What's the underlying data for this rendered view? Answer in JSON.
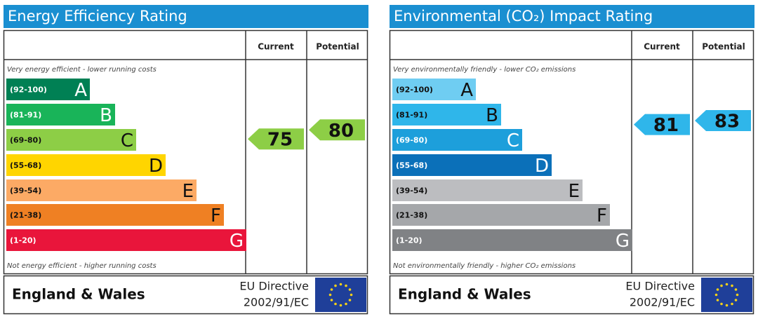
{
  "panels": [
    {
      "title": "Energy Efficiency Rating",
      "col_headers": [
        "Current",
        "Potential"
      ],
      "top_note": "Very energy efficient - lower running costs",
      "bottom_note": "Not energy efficient - higher running costs",
      "bands": [
        {
          "range": "(92-100)",
          "letter": "A",
          "color": "#008054"
        },
        {
          "range": "(81-91)",
          "letter": "B",
          "color": "#19b459"
        },
        {
          "range": "(69-80)",
          "letter": "C",
          "color": "#8dce46"
        },
        {
          "range": "(55-68)",
          "letter": "D",
          "color": "#ffd500"
        },
        {
          "range": "(39-54)",
          "letter": "E",
          "color": "#fcaa65"
        },
        {
          "range": "(21-38)",
          "letter": "F",
          "color": "#ef8023"
        },
        {
          "range": "(1-20)",
          "letter": "G",
          "color": "#e9153b"
        }
      ],
      "current": 75,
      "potential": 80,
      "footer": {
        "region": "England & Wales",
        "directive": "EU Directive",
        "directive_code": "2002/91/EC"
      }
    },
    {
      "title": "Environmental (CO₂) Impact Rating",
      "col_headers": [
        "Current",
        "Potential"
      ],
      "top_note": "Very environmentally friendly - lower CO₂ emissions",
      "bottom_note": "Not environmentally friendly - higher CO₂ emissions",
      "bands": [
        {
          "range": "(92-100)",
          "letter": "A",
          "color": "#6fcdf2"
        },
        {
          "range": "(81-91)",
          "letter": "B",
          "color": "#2fb6ea"
        },
        {
          "range": "(69-80)",
          "letter": "C",
          "color": "#1d9fdb"
        },
        {
          "range": "(55-68)",
          "letter": "D",
          "color": "#0b70b9"
        },
        {
          "range": "(39-54)",
          "letter": "E",
          "color": "#bcbdc0"
        },
        {
          "range": "(21-38)",
          "letter": "F",
          "color": "#a5a7aa"
        },
        {
          "range": "(1-20)",
          "letter": "G",
          "color": "#808285"
        }
      ],
      "current": 81,
      "potential": 83,
      "footer": {
        "region": "England & Wales",
        "directive": "EU Directive",
        "directive_code": "2002/91/EC"
      }
    }
  ]
}
